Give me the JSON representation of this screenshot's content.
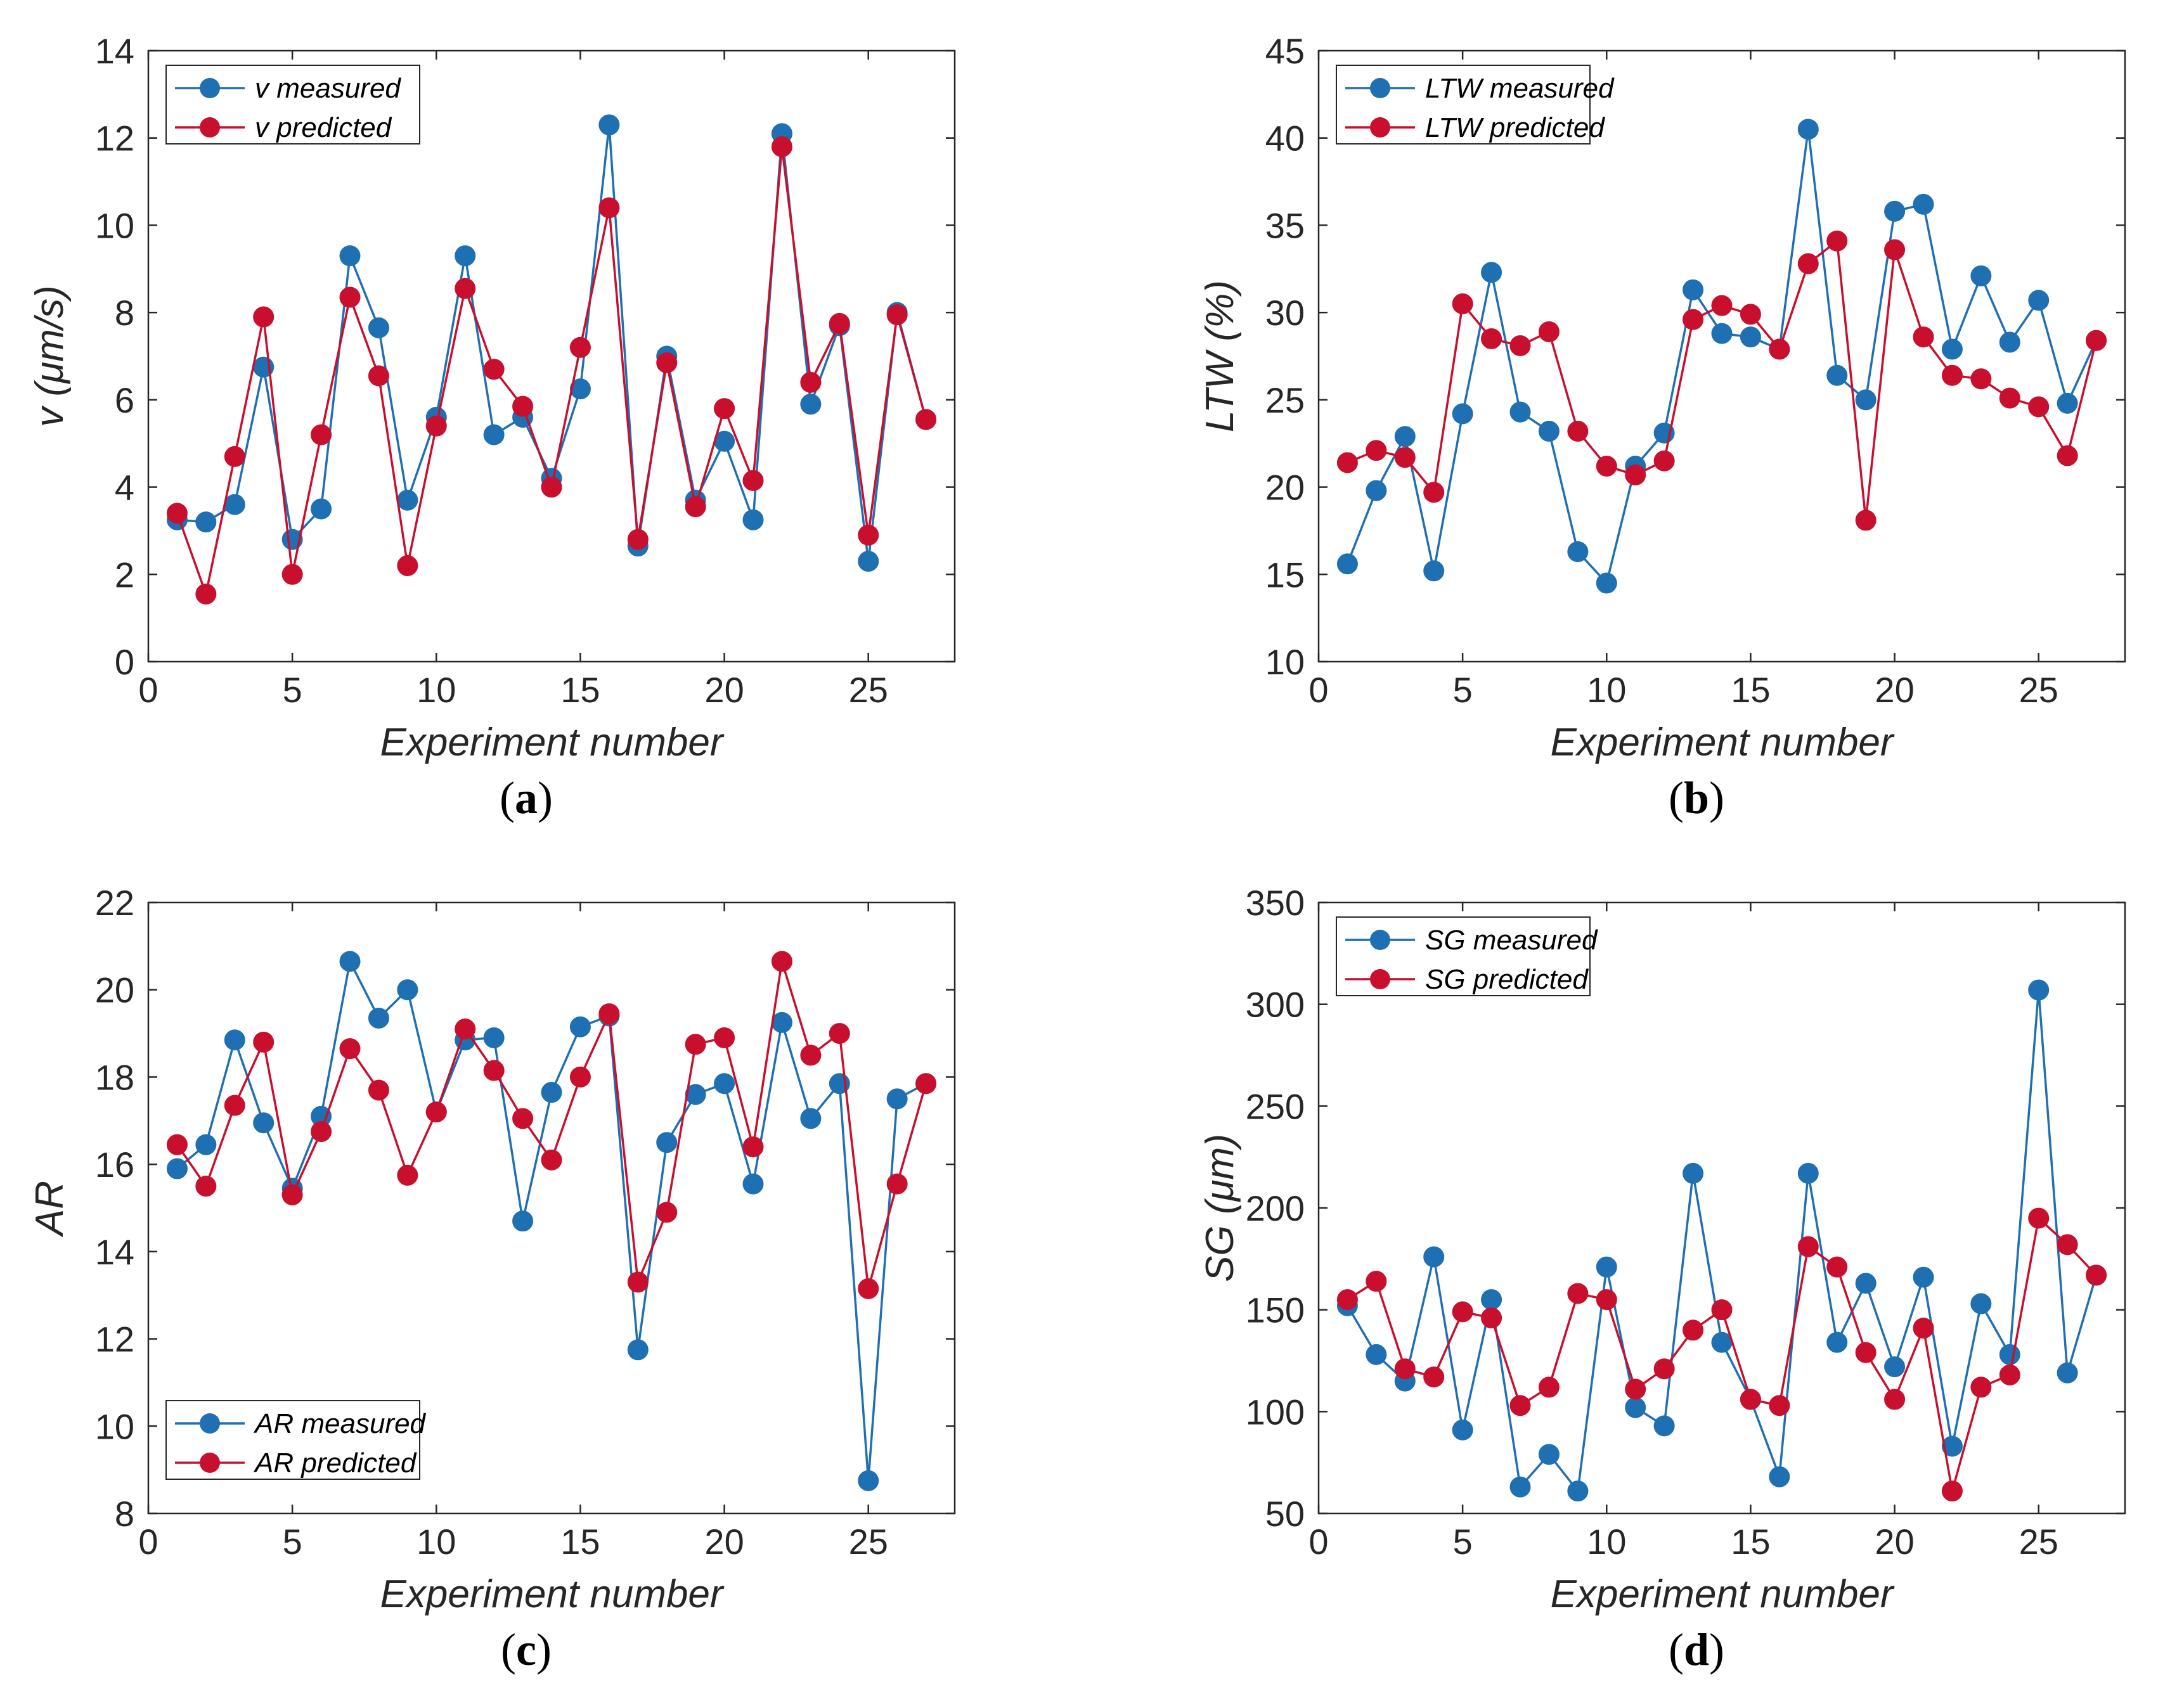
{
  "figure": {
    "colors": {
      "measured": "#1f6fb3",
      "predicted": "#c8102e",
      "axis": "#262626"
    }
  },
  "chart_data": [
    {
      "type": "line",
      "panel_label": {
        "open": "(",
        "letter": "a",
        "close": ")"
      },
      "xlabel": "Experiment number",
      "ylabel": "v (μm/s)",
      "xlim": [
        0,
        28
      ],
      "ylim": [
        0,
        14
      ],
      "xticks": [
        0,
        5,
        10,
        15,
        20,
        25
      ],
      "yticks": [
        0,
        2,
        4,
        6,
        8,
        10,
        12,
        14
      ],
      "legend_position": "top-left",
      "x": [
        1,
        2,
        3,
        4,
        5,
        6,
        7,
        8,
        9,
        10,
        11,
        12,
        13,
        14,
        15,
        16,
        17,
        18,
        19,
        20,
        21,
        22,
        23,
        24,
        25,
        26,
        27
      ],
      "series": [
        {
          "name": "v measured",
          "values": [
            3.25,
            3.2,
            3.6,
            6.75,
            2.8,
            3.5,
            9.3,
            7.65,
            3.7,
            5.6,
            9.3,
            5.2,
            5.6,
            4.2,
            6.25,
            12.3,
            2.65,
            7.0,
            3.7,
            5.05,
            3.25,
            12.1,
            5.9,
            7.7,
            2.3,
            8.0,
            5.55
          ]
        },
        {
          "name": "v predicted",
          "values": [
            3.4,
            1.55,
            4.7,
            7.9,
            2.0,
            5.2,
            8.35,
            6.55,
            2.2,
            5.4,
            8.55,
            6.7,
            5.85,
            4.0,
            7.2,
            10.4,
            2.8,
            6.85,
            3.55,
            5.8,
            4.15,
            11.8,
            6.4,
            7.75,
            2.9,
            7.95,
            5.55
          ]
        }
      ]
    },
    {
      "type": "line",
      "panel_label": {
        "open": "(",
        "letter": "b",
        "close": ")"
      },
      "xlabel": "Experiment number",
      "ylabel": "LTW (%)",
      "xlim": [
        0,
        28
      ],
      "ylim": [
        10,
        45
      ],
      "xticks": [
        0,
        5,
        10,
        15,
        20,
        25
      ],
      "yticks": [
        10,
        15,
        20,
        25,
        30,
        35,
        40,
        45
      ],
      "legend_position": "top-left",
      "x": [
        1,
        2,
        3,
        4,
        5,
        6,
        7,
        8,
        9,
        10,
        11,
        12,
        13,
        14,
        15,
        16,
        17,
        18,
        19,
        20,
        21,
        22,
        23,
        24,
        25,
        26,
        27
      ],
      "series": [
        {
          "name": "LTW measured",
          "values": [
            15.6,
            19.8,
            22.9,
            15.2,
            24.2,
            32.3,
            24.3,
            23.2,
            16.3,
            14.5,
            21.2,
            23.1,
            31.3,
            28.8,
            28.6,
            27.9,
            40.5,
            26.4,
            25.0,
            35.8,
            36.2,
            27.9,
            32.1,
            28.3,
            30.7,
            24.8,
            28.4
          ]
        },
        {
          "name": "LTW predicted",
          "values": [
            21.4,
            22.1,
            21.7,
            19.7,
            30.5,
            28.5,
            28.1,
            28.9,
            23.2,
            21.2,
            20.7,
            21.5,
            29.6,
            30.4,
            29.9,
            27.9,
            32.8,
            34.1,
            18.1,
            33.6,
            28.6,
            26.4,
            26.2,
            25.1,
            24.6,
            21.8,
            28.4
          ]
        }
      ]
    },
    {
      "type": "line",
      "panel_label": {
        "open": "(",
        "letter": "c",
        "close": ")"
      },
      "xlabel": "Experiment number",
      "ylabel": "AR",
      "xlim": [
        0,
        28
      ],
      "ylim": [
        8,
        22
      ],
      "xticks": [
        0,
        5,
        10,
        15,
        20,
        25
      ],
      "yticks": [
        8,
        10,
        12,
        14,
        16,
        18,
        20,
        22
      ],
      "legend_position": "bottom-left",
      "x": [
        1,
        2,
        3,
        4,
        5,
        6,
        7,
        8,
        9,
        10,
        11,
        12,
        13,
        14,
        15,
        16,
        17,
        18,
        19,
        20,
        21,
        22,
        23,
        24,
        25,
        26,
        27
      ],
      "series": [
        {
          "name": "AR measured",
          "values": [
            15.9,
            16.45,
            18.85,
            16.95,
            15.45,
            17.1,
            20.65,
            19.35,
            20.0,
            17.2,
            18.85,
            18.9,
            14.7,
            17.65,
            19.15,
            19.4,
            11.75,
            16.5,
            17.6,
            17.85,
            15.55,
            19.25,
            17.05,
            17.85,
            8.75,
            17.5,
            17.85
          ]
        },
        {
          "name": "AR predicted",
          "values": [
            16.45,
            15.5,
            17.35,
            18.8,
            15.3,
            16.75,
            18.65,
            17.7,
            15.75,
            17.2,
            19.1,
            18.15,
            17.05,
            16.1,
            18.0,
            19.45,
            13.3,
            14.9,
            18.75,
            18.9,
            16.4,
            20.65,
            18.5,
            19.0,
            13.15,
            15.55,
            17.85
          ]
        }
      ]
    },
    {
      "type": "line",
      "panel_label": {
        "open": "(",
        "letter": "d",
        "close": ")"
      },
      "xlabel": "Experiment number",
      "ylabel": "SG (μm)",
      "xlim": [
        0,
        28
      ],
      "ylim": [
        50,
        350
      ],
      "xticks": [
        0,
        5,
        10,
        15,
        20,
        25
      ],
      "yticks": [
        50,
        100,
        150,
        200,
        250,
        300,
        350
      ],
      "legend_position": "top-left",
      "x": [
        1,
        2,
        3,
        4,
        5,
        6,
        7,
        8,
        9,
        10,
        11,
        12,
        13,
        14,
        15,
        16,
        17,
        18,
        19,
        20,
        21,
        22,
        23,
        24,
        25,
        26,
        27
      ],
      "series": [
        {
          "name": "SG measured",
          "values": [
            152,
            128,
            115,
            176,
            91,
            155,
            63,
            79,
            61,
            171,
            102,
            93,
            217,
            134,
            106,
            68,
            217,
            134,
            163,
            122,
            166,
            83,
            153,
            128,
            307,
            119,
            167
          ]
        },
        {
          "name": "SG predicted",
          "values": [
            155,
            164,
            121,
            117,
            149,
            146,
            103,
            112,
            158,
            155,
            111,
            121,
            140,
            150,
            106,
            103,
            181,
            171,
            129,
            106,
            141,
            61,
            112,
            118,
            195,
            182,
            167
          ]
        }
      ]
    }
  ]
}
